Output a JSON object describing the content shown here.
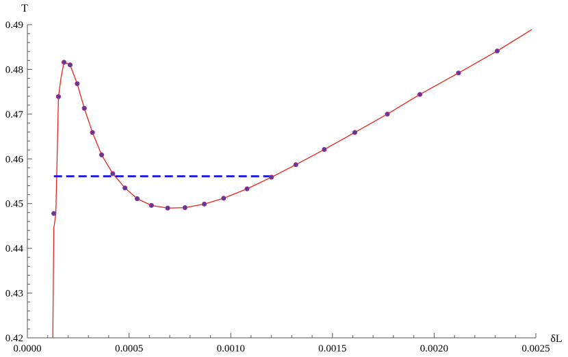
{
  "chart_data": {
    "type": "line",
    "title": "",
    "xlabel": "δL",
    "ylabel": "T",
    "xlim": [
      0,
      0.0025
    ],
    "ylim": [
      0.42,
      0.49
    ],
    "x_ticks": [
      0,
      0.0005,
      0.001,
      0.0015,
      0.002,
      0.0025
    ],
    "x_tick_labels": [
      "0.0000",
      "0.0005",
      "0.0010",
      "0.0015",
      "0.0020",
      "0.0025"
    ],
    "y_ticks": [
      0.42,
      0.43,
      0.44,
      0.45,
      0.46,
      0.47,
      0.48,
      0.49
    ],
    "y_tick_labels": [
      "0.42",
      "0.43",
      "0.44",
      "0.45",
      "0.46",
      "0.47",
      "0.48",
      "0.49"
    ],
    "grid": false,
    "colors": {
      "curve": "#e8221a",
      "points": "#5a3a9e",
      "point_edge": "#c0306a",
      "dashed": "#1a1ae6"
    },
    "series": [
      {
        "style": "curve",
        "x": [
          0.000125,
          0.00013,
          0.00014,
          0.000153,
          0.000165,
          0.00018,
          0.00021,
          0.000245,
          0.00028,
          0.00032,
          0.000365,
          0.00042,
          0.00048,
          0.00054,
          0.00061,
          0.00069,
          0.000775,
          0.00087,
          0.000965,
          0.00108,
          0.0012,
          0.00132,
          0.00146,
          0.00161,
          0.00177,
          0.00193,
          0.00212,
          0.00231,
          0.00248
        ],
        "y": [
          0.4195,
          0.4445,
          0.4478,
          0.4739,
          0.478,
          0.4816,
          0.481,
          0.4768,
          0.4713,
          0.4659,
          0.4609,
          0.4567,
          0.4535,
          0.4511,
          0.4496,
          0.449,
          0.4491,
          0.4499,
          0.4512,
          0.4533,
          0.4559,
          0.4587,
          0.4621,
          0.4659,
          0.47,
          0.4744,
          0.4792,
          0.4841,
          0.4889
        ]
      },
      {
        "style": "points",
        "x": [
          0.00013,
          0.000153,
          0.00018,
          0.00021,
          0.000245,
          0.00028,
          0.00032,
          0.000365,
          0.00042,
          0.00048,
          0.00054,
          0.00061,
          0.00069,
          0.000775,
          0.00087,
          0.000965,
          0.00108,
          0.0012,
          0.00132,
          0.00146,
          0.00161,
          0.00177,
          0.00193,
          0.00212,
          0.00231
        ],
        "y": [
          0.4478,
          0.4739,
          0.4816,
          0.481,
          0.4768,
          0.4713,
          0.4659,
          0.4609,
          0.4567,
          0.4535,
          0.4511,
          0.4496,
          0.449,
          0.4491,
          0.4499,
          0.4512,
          0.4533,
          0.4559,
          0.4587,
          0.4621,
          0.4659,
          0.47,
          0.4744,
          0.4792,
          0.4841
        ]
      },
      {
        "style": "dashed",
        "x": [
          0.00013,
          0.0012
        ],
        "y": [
          0.4561,
          0.4561
        ]
      }
    ]
  }
}
